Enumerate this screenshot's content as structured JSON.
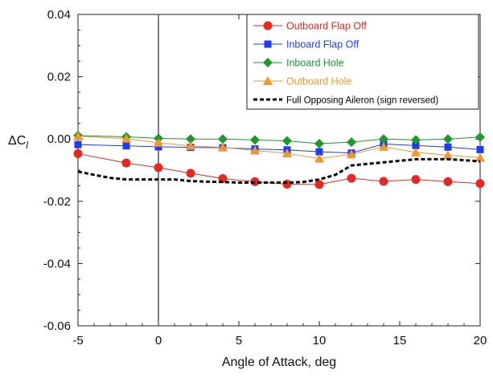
{
  "chart_data": {
    "type": "line",
    "title": "",
    "xlabel": "Angle of Attack, deg",
    "ylabel": "ΔC",
    "ylabel_subscript": "l",
    "xlim": [
      -5,
      20
    ],
    "ylim": [
      -0.06,
      0.04
    ],
    "xticks": [
      -5,
      0,
      5,
      10,
      15,
      20
    ],
    "xtick_labels": [
      "-5",
      "0",
      "5",
      "10",
      "15",
      "20"
    ],
    "yticks": [
      -0.06,
      -0.04,
      -0.02,
      0.0,
      0.02,
      0.04
    ],
    "ytick_labels": [
      "-0.06",
      "-0.04",
      "-0.02",
      "0.00",
      "0.02",
      "0.04"
    ],
    "grid": false,
    "vertical_reference_line_x": 0,
    "legend_position": "top-right",
    "series": [
      {
        "name": "Outboard Flap Off",
        "color": "#e8281e",
        "marker": "circle",
        "line_style": "solid",
        "x": [
          -5,
          -2,
          0,
          2,
          4,
          6,
          8,
          10,
          12,
          14,
          16,
          18,
          20
        ],
        "y": [
          -0.0047,
          -0.0077,
          -0.0092,
          -0.011,
          -0.0127,
          -0.0137,
          -0.0145,
          -0.0146,
          -0.0126,
          -0.0136,
          -0.013,
          -0.0137,
          -0.0143
        ]
      },
      {
        "name": "Inboard Flap Off",
        "color": "#1b3cf0",
        "marker": "square",
        "line_style": "solid",
        "x": [
          -5,
          -2,
          0,
          2,
          4,
          6,
          8,
          10,
          12,
          14,
          16,
          18,
          20
        ],
        "y": [
          -0.0018,
          -0.0022,
          -0.0025,
          -0.0027,
          -0.0028,
          -0.0032,
          -0.0035,
          -0.0041,
          -0.0045,
          -0.0016,
          -0.0021,
          -0.0026,
          -0.0034
        ]
      },
      {
        "name": "Inboard Hole",
        "color": "#1a9a2a",
        "marker": "diamond",
        "line_style": "solid",
        "x": [
          -5,
          -2,
          0,
          2,
          4,
          6,
          8,
          10,
          12,
          14,
          16,
          18,
          20
        ],
        "y": [
          0.0011,
          0.0007,
          0.0002,
          0.0,
          0.0,
          -0.0003,
          -0.0006,
          -0.0015,
          -0.001,
          0.0,
          -0.0003,
          0.0,
          0.0006
        ]
      },
      {
        "name": "Outboard Hole",
        "color": "#f5962a",
        "marker": "triangle",
        "line_style": "solid",
        "x": [
          -5,
          -2,
          0,
          2,
          4,
          6,
          8,
          10,
          12,
          14,
          16,
          18,
          20
        ],
        "y": [
          0.0009,
          0.0001,
          -0.0012,
          -0.0022,
          -0.0027,
          -0.0037,
          -0.0046,
          -0.0063,
          -0.0049,
          -0.0025,
          -0.0043,
          -0.0052,
          -0.006
        ]
      },
      {
        "name": "Full Opposing Aileron (sign reversed)",
        "color": "#000000",
        "marker": "none",
        "line_style": "dashed",
        "x": [
          -5,
          -4,
          -3,
          -2,
          -1,
          0,
          1,
          2,
          3,
          4,
          5,
          6,
          7,
          8,
          9,
          10,
          11,
          12,
          13,
          14,
          15,
          16,
          17,
          18,
          19,
          20
        ],
        "y": [
          -0.0105,
          -0.0115,
          -0.0125,
          -0.013,
          -0.013,
          -0.013,
          -0.013,
          -0.0135,
          -0.0137,
          -0.0138,
          -0.014,
          -0.014,
          -0.014,
          -0.014,
          -0.0138,
          -0.013,
          -0.0115,
          -0.0085,
          -0.008,
          -0.0075,
          -0.007,
          -0.0065,
          -0.0065,
          -0.0065,
          -0.0068,
          -0.0072
        ]
      }
    ]
  }
}
